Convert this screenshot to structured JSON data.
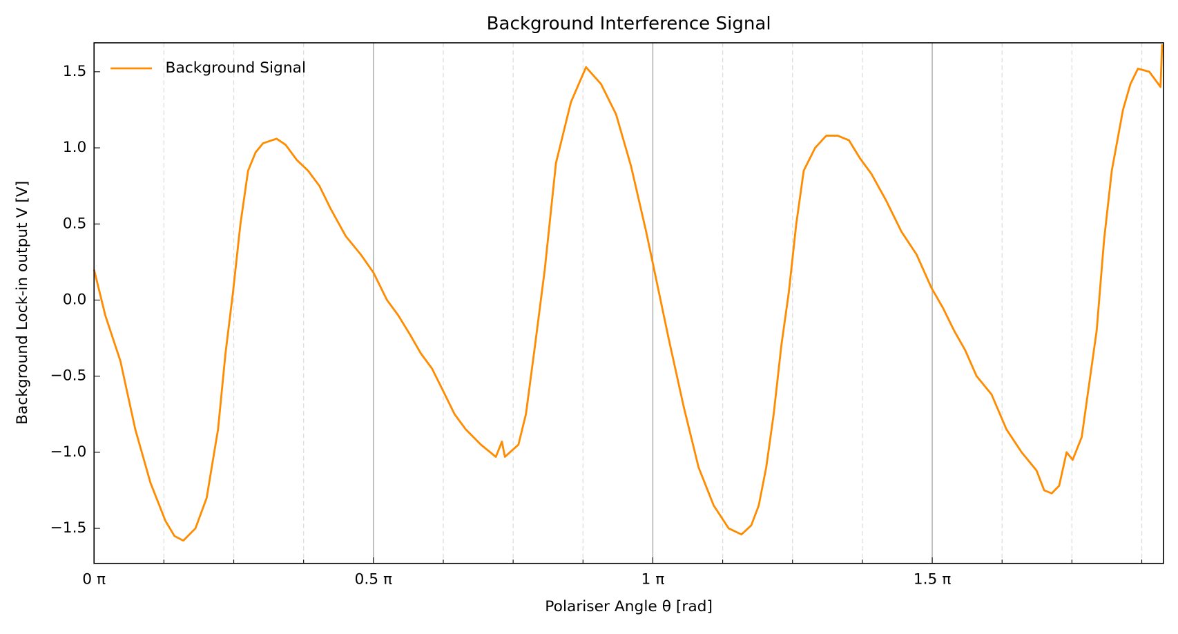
{
  "chart_data": {
    "type": "line",
    "title": "Background Interference Signal",
    "xlabel": "Polariser Angle θ [rad]",
    "ylabel": "Background Lock-in output V [V]",
    "x": [
      0,
      0.063,
      0.148,
      0.232,
      0.317,
      0.401,
      0.452,
      0.502,
      0.57,
      0.633,
      0.697,
      0.739,
      0.781,
      0.823,
      0.866,
      0.908,
      0.95,
      1.026,
      1.077,
      1.14,
      1.203,
      1.267,
      1.33,
      1.415,
      1.499,
      1.571,
      1.647,
      1.71,
      1.773,
      1.837,
      1.9,
      1.964,
      2.027,
      2.09,
      2.175,
      2.259,
      2.293,
      2.31,
      2.386,
      2.428,
      2.479,
      2.534,
      2.597,
      2.681,
      2.766,
      2.85,
      2.935,
      3.019,
      3.104,
      3.167,
      3.23,
      3.315,
      3.399,
      3.484,
      3.568,
      3.64,
      3.695,
      3.737,
      3.779,
      3.821,
      3.864,
      3.906,
      3.948,
      3.99,
      4.054,
      4.117,
      4.18,
      4.244,
      4.307,
      4.37,
      4.455,
      4.539,
      4.624,
      4.708,
      4.772,
      4.835,
      4.898,
      4.962,
      5.046,
      5.13,
      5.215,
      5.299,
      5.342,
      5.384,
      5.426,
      5.468,
      5.502,
      5.553,
      5.595,
      5.637,
      5.679,
      5.722,
      5.785,
      5.827,
      5.869,
      5.933,
      5.996,
      6.005
    ],
    "series": [
      {
        "name": "Background Signal",
        "color": "#ff8c00",
        "values": [
          0.2,
          -0.1,
          -0.4,
          -0.85,
          -1.2,
          -1.45,
          -1.55,
          -1.58,
          -1.5,
          -1.3,
          -0.85,
          -0.35,
          0.05,
          0.5,
          0.85,
          0.97,
          1.03,
          1.06,
          1.02,
          0.92,
          0.85,
          0.75,
          0.6,
          0.42,
          0.3,
          0.18,
          0.0,
          -0.1,
          -0.22,
          -0.35,
          -0.45,
          -0.6,
          -0.75,
          -0.85,
          -0.95,
          -1.03,
          -0.93,
          -1.03,
          -0.95,
          -0.75,
          -0.3,
          0.2,
          0.9,
          1.3,
          1.53,
          1.42,
          1.22,
          0.88,
          0.45,
          0.1,
          -0.25,
          -0.7,
          -1.1,
          -1.35,
          -1.5,
          -1.54,
          -1.48,
          -1.35,
          -1.1,
          -0.75,
          -0.3,
          0.05,
          0.5,
          0.85,
          1.0,
          1.08,
          1.08,
          1.05,
          0.93,
          0.83,
          0.65,
          0.45,
          0.3,
          0.08,
          -0.05,
          -0.2,
          -0.33,
          -0.5,
          -0.62,
          -0.85,
          -1.0,
          -1.12,
          -1.25,
          -1.27,
          -1.22,
          -1.0,
          -1.05,
          -0.9,
          -0.55,
          -0.2,
          0.4,
          0.85,
          1.25,
          1.42,
          1.52,
          1.5,
          1.4,
          1.68
        ]
      }
    ],
    "xlim": [
      0,
      6.013
    ],
    "xticks": [
      {
        "value": 0,
        "label": "0 π"
      },
      {
        "value": 1.5708,
        "label": "0.5 π"
      },
      {
        "value": 3.1416,
        "label": "1 π"
      },
      {
        "value": 4.7124,
        "label": "1.5 π"
      }
    ],
    "xticks_minor": [
      0.3927,
      0.7854,
      1.1781,
      1.9635,
      2.3562,
      2.7489,
      3.5343,
      3.927,
      4.3197,
      5.1051,
      5.4978,
      5.8905
    ],
    "ylim": [
      -1.73,
      1.69
    ],
    "yticks": [
      {
        "value": -1.5,
        "label": "−1.5"
      },
      {
        "value": -1.0,
        "label": "−1.0"
      },
      {
        "value": -0.5,
        "label": "−0.5"
      },
      {
        "value": 0,
        "label": "0.0"
      },
      0.5,
      {
        "value": 1.0,
        "label": "1.0"
      },
      1.5
    ],
    "grid": true,
    "legend": "upper left"
  }
}
